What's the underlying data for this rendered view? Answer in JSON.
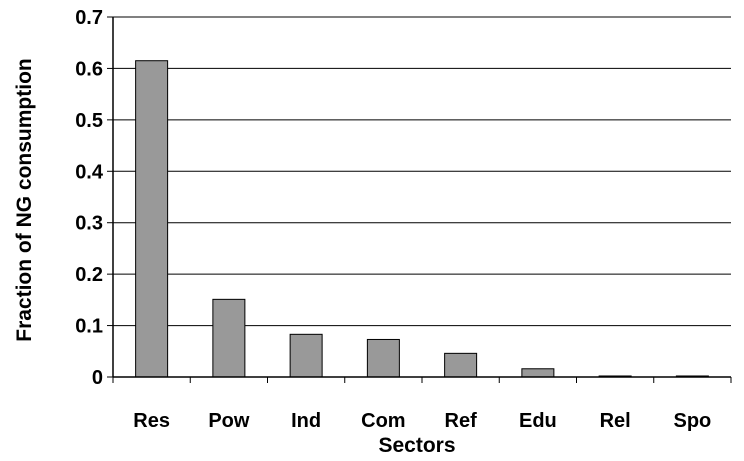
{
  "chart_data": {
    "type": "bar",
    "categories": [
      "Res",
      "Pow",
      "Ind",
      "Com",
      "Ref",
      "Edu",
      "Rel",
      "Spo"
    ],
    "values": [
      0.615,
      0.151,
      0.083,
      0.073,
      0.046,
      0.016,
      0.002,
      0.002
    ],
    "xlabel": "Sectors",
    "ylabel": "Fraction of NG consumption",
    "ylim": [
      0,
      0.7
    ],
    "yticks": [
      "0",
      "0.1",
      "0.2",
      "0.3",
      "0.4",
      "0.5",
      "0.6",
      "0.7"
    ],
    "grid": true,
    "bar_color": "#999999",
    "legend": "none"
  }
}
